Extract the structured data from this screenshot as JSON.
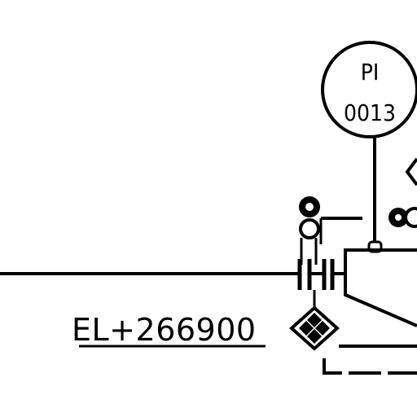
{
  "instrument": {
    "function": "PI",
    "number": "0013"
  },
  "elevation": {
    "label": "EL+266900"
  },
  "colors": {
    "line": "#000000",
    "background": "#ffffff"
  }
}
